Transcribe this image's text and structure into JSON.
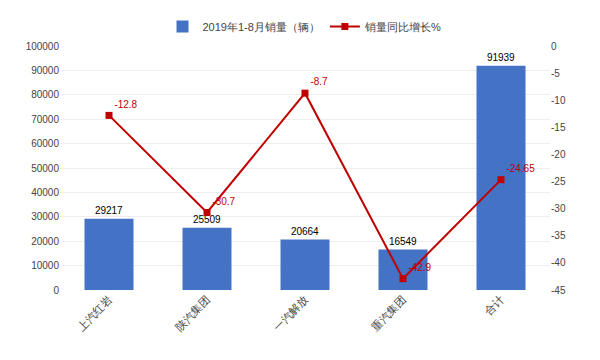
{
  "chart_data": {
    "type": "bar",
    "categories": [
      "上汽红岩",
      "陕汽集团",
      "一汽解放",
      "重汽集团",
      "合计"
    ],
    "series": [
      {
        "name": "2019年1-8月销量（辆）",
        "type": "bar",
        "color": "#4472C4",
        "values": [
          29217,
          25509,
          20664,
          16549,
          91939
        ]
      },
      {
        "name": "销量同比增长%",
        "type": "line",
        "axis": "y2",
        "color": "#C00000",
        "marker": "square",
        "values": [
          -12.8,
          -30.7,
          -8.7,
          -42.9,
          -24.65
        ]
      }
    ],
    "ylim": [
      0,
      100000
    ],
    "yticks": [
      0,
      10000,
      20000,
      30000,
      40000,
      50000,
      60000,
      70000,
      80000,
      90000,
      100000
    ],
    "y2lim": [
      -45,
      0
    ],
    "y2ticks": [
      0,
      -5,
      -10,
      -15,
      -20,
      -25,
      -30,
      -35,
      -40,
      -45
    ],
    "grid": true,
    "legend": "top",
    "data_labels": true
  }
}
